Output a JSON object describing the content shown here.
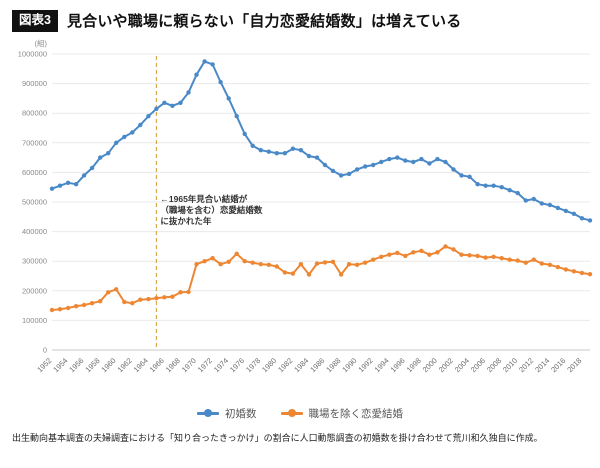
{
  "header": {
    "badge": "図表3",
    "title": "見合いや職場に頼らない「自力恋愛結婚数」は増えている"
  },
  "footnote": "出生動向基本調査の夫婦調査における「知り合ったきっかけ」の割合に人口動態調査の初婚数を掛け合わせて荒川和久独自に作成。",
  "chart_data": {
    "type": "line",
    "title": "見合いや職場に頼らない「自力恋愛結婚数」は増えている",
    "unit_label": "(組)",
    "xlabel": "",
    "ylabel": "",
    "grid": true,
    "legend_position": "bottom",
    "ylim": [
      0,
      1000000
    ],
    "x_range": [
      1952,
      2019
    ],
    "yticks": [
      0,
      100000,
      200000,
      300000,
      400000,
      500000,
      600000,
      700000,
      800000,
      900000,
      1000000
    ],
    "xticks": [
      1952,
      1954,
      1956,
      1958,
      1960,
      1962,
      1964,
      1966,
      1968,
      1970,
      1972,
      1974,
      1976,
      1978,
      1980,
      1982,
      1984,
      1986,
      1988,
      1990,
      1992,
      1994,
      1996,
      1998,
      2000,
      2002,
      2004,
      2006,
      2008,
      2010,
      2012,
      2014,
      2016,
      2018
    ],
    "x": [
      1952,
      1953,
      1954,
      1955,
      1956,
      1957,
      1958,
      1959,
      1960,
      1961,
      1962,
      1963,
      1964,
      1965,
      1966,
      1967,
      1968,
      1969,
      1970,
      1971,
      1972,
      1973,
      1974,
      1975,
      1976,
      1977,
      1978,
      1979,
      1980,
      1981,
      1982,
      1983,
      1984,
      1985,
      1986,
      1987,
      1988,
      1989,
      1990,
      1991,
      1992,
      1993,
      1994,
      1995,
      1996,
      1997,
      1998,
      1999,
      2000,
      2001,
      2002,
      2003,
      2004,
      2005,
      2006,
      2007,
      2008,
      2009,
      2010,
      2011,
      2012,
      2013,
      2014,
      2015,
      2016,
      2017,
      2018,
      2019
    ],
    "series": [
      {
        "name": "初婚数",
        "color": "#4a89c8",
        "values": [
          545000,
          555000,
          565000,
          560000,
          590000,
          615000,
          650000,
          665000,
          700000,
          720000,
          735000,
          760000,
          790000,
          815000,
          835000,
          825000,
          835000,
          870000,
          930000,
          975000,
          965000,
          905000,
          850000,
          790000,
          730000,
          690000,
          675000,
          670000,
          665000,
          665000,
          680000,
          675000,
          655000,
          650000,
          625000,
          605000,
          590000,
          595000,
          610000,
          620000,
          625000,
          635000,
          645000,
          650000,
          640000,
          635000,
          645000,
          630000,
          645000,
          635000,
          610000,
          590000,
          585000,
          560000,
          555000,
          555000,
          550000,
          540000,
          530000,
          505000,
          510000,
          495000,
          490000,
          480000,
          470000,
          460000,
          445000,
          438000
        ]
      },
      {
        "name": "職場を除く恋愛結婚",
        "color": "#ed8733",
        "values": [
          135000,
          138000,
          142000,
          148000,
          152000,
          158000,
          165000,
          195000,
          205000,
          162000,
          158000,
          170000,
          172000,
          175000,
          178000,
          180000,
          195000,
          196000,
          290000,
          300000,
          310000,
          290000,
          298000,
          325000,
          300000,
          295000,
          290000,
          288000,
          282000,
          262000,
          258000,
          290000,
          255000,
          292000,
          296000,
          298000,
          255000,
          290000,
          288000,
          295000,
          305000,
          315000,
          322000,
          328000,
          318000,
          330000,
          335000,
          322000,
          330000,
          350000,
          340000,
          322000,
          320000,
          318000,
          312000,
          315000,
          310000,
          305000,
          302000,
          295000,
          305000,
          292000,
          288000,
          280000,
          272000,
          266000,
          260000,
          256000
        ]
      }
    ],
    "annotation": {
      "year": 1965,
      "color": "#d9a94f",
      "value_y": 500000,
      "lines": [
        "←1965年見合い結婚が",
        "（職場を含む）恋愛結婚数",
        "に抜かれた年"
      ]
    }
  }
}
